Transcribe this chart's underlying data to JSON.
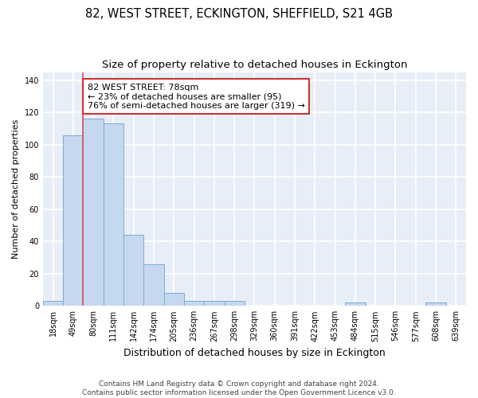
{
  "title": "82, WEST STREET, ECKINGTON, SHEFFIELD, S21 4GB",
  "subtitle": "Size of property relative to detached houses in Eckington",
  "xlabel": "Distribution of detached houses by size in Eckington",
  "ylabel": "Number of detached properties",
  "bar_labels": [
    "18sqm",
    "49sqm",
    "80sqm",
    "111sqm",
    "142sqm",
    "174sqm",
    "205sqm",
    "236sqm",
    "267sqm",
    "298sqm",
    "329sqm",
    "360sqm",
    "391sqm",
    "422sqm",
    "453sqm",
    "484sqm",
    "515sqm",
    "546sqm",
    "577sqm",
    "608sqm",
    "639sqm"
  ],
  "bar_values": [
    3,
    106,
    116,
    113,
    44,
    26,
    8,
    3,
    3,
    3,
    0,
    0,
    0,
    0,
    0,
    2,
    0,
    0,
    0,
    2,
    0
  ],
  "bar_color": "#c5d8f0",
  "bar_edgecolor": "#7aadd4",
  "vline_color": "#d9534f",
  "vline_idx": 2,
  "annotation_text": "82 WEST STREET: 78sqm\n← 23% of detached houses are smaller (95)\n76% of semi-detached houses are larger (319) →",
  "annotation_box_facecolor": "#ffffff",
  "annotation_box_edgecolor": "#cc3333",
  "ylim": [
    0,
    145
  ],
  "yticks": [
    0,
    20,
    40,
    60,
    80,
    100,
    120,
    140
  ],
  "background_color": "#e8eef8",
  "grid_color": "#ffffff",
  "footer1": "Contains HM Land Registry data © Crown copyright and database right 2024.",
  "footer2": "Contains public sector information licensed under the Open Government Licence v3.0.",
  "title_fontsize": 10.5,
  "subtitle_fontsize": 9.5,
  "xlabel_fontsize": 9,
  "ylabel_fontsize": 8,
  "tick_fontsize": 7,
  "annotation_fontsize": 8,
  "footer_fontsize": 6.5
}
